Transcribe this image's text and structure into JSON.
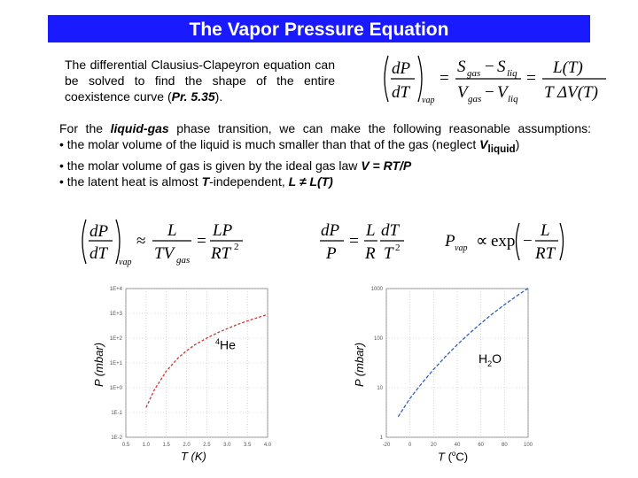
{
  "slide": {
    "title": "The Vapor Pressure Equation",
    "intro": {
      "text_a": "The differential Clausius-Clapeyron equation can be solved to find the shape of the entire coexistence curve (",
      "ref": "Pr. 5.35",
      "text_b": ")."
    },
    "paragraph": {
      "a": "For the ",
      "b": "liquid-gas",
      "c": " phase transition, we can make the following reasonable assumptions:"
    },
    "bullets": [
      {
        "a": "the molar volume of the liquid is much smaller than that of the gas (neglect ",
        "v": "V",
        "sub": "liquid",
        "end": ")"
      },
      {
        "a": "the molar volume of gas is given by the ideal gas law ",
        "formula": "V = RT/P"
      },
      {
        "a": "the latent heat is almost ",
        "t": "T",
        "b": "-independent, ",
        "formula": "L ≠ L(T)"
      }
    ],
    "bullet_char": "•"
  },
  "equations": {
    "cc": {
      "dP": "dP",
      "dT": "dT",
      "vap": "vap",
      "s_gas": "S",
      "gas": "gas",
      "minus": "−",
      "s_liq": "S",
      "liq": "liq",
      "v_gas": "V",
      "v_liq": "V",
      "eq": "=",
      "L": "L(T)",
      "TDV": "T ΔV(T)"
    },
    "approx": {
      "dP": "dP",
      "dT": "dT",
      "vap": "vap",
      "approx": "≈",
      "L": "L",
      "TVgas": "TV",
      "gas": "gas",
      "eq": "=",
      "LP": "LP",
      "RT2": "RT",
      "sq": "2"
    },
    "sep": {
      "dP": "dP",
      "P": "P",
      "eq": "=",
      "L": "L",
      "R": "R",
      "dT": "dT",
      "T2": "T",
      "sq": "2"
    },
    "sol": {
      "P": "P",
      "vap": "vap",
      "prop": "∝",
      "exp": "exp",
      "minus": "−",
      "L": "L",
      "RT": "RT"
    }
  },
  "chart_data": [
    {
      "type": "line",
      "ylabel": "P (mbar)",
      "xlabel": "T (K)",
      "annotation": "4He",
      "yscale": "log",
      "xlim": [
        1.0,
        4.0
      ],
      "ylim": [
        0.01,
        10000
      ],
      "x_ticks": [
        "0.5",
        "1.0",
        "1.5",
        "2.0",
        "2.5",
        "3.0",
        "3.5",
        "4.0"
      ],
      "y_ticks": [
        "1E-2",
        "1E-1",
        "1E+0",
        "1E+1",
        "1E+2",
        "1E+3",
        "1E+4"
      ],
      "grid": true,
      "color": "#d9302e",
      "series": [
        {
          "x": [
            1.0,
            1.2,
            1.5,
            1.8,
            2.0,
            2.2,
            2.5,
            2.8,
            3.0,
            3.3,
            3.6,
            4.0
          ],
          "y": [
            0.16,
            0.8,
            4.7,
            16.4,
            31,
            53,
            101,
            175,
            242,
            380,
            561,
            900
          ]
        }
      ]
    },
    {
      "type": "line",
      "ylabel": "P (mbar)",
      "xlabel": "T (°C)",
      "annotation": "H2O",
      "yscale": "log",
      "xlim": [
        -20,
        100
      ],
      "ylim": [
        1,
        1000
      ],
      "x_ticks": [
        "-20",
        "0",
        "20",
        "40",
        "60",
        "80",
        "100"
      ],
      "y_ticks": [
        "1",
        "10",
        "100",
        "1000"
      ],
      "grid": true,
      "color": "#2f5fc4",
      "series": [
        {
          "x": [
            -10,
            0,
            10,
            20,
            30,
            40,
            50,
            60,
            70,
            80,
            90,
            100
          ],
          "y": [
            2.6,
            6.1,
            12.3,
            23.4,
            42.4,
            73.8,
            123,
            199,
            312,
            474,
            701,
            1013
          ]
        }
      ]
    }
  ]
}
